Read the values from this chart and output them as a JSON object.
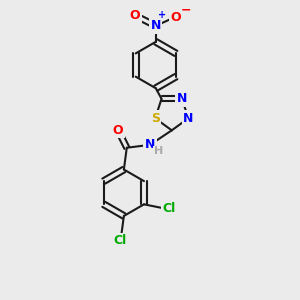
{
  "bg_color": "#ebebeb",
  "bond_color": "#1a1a1a",
  "bond_width": 1.5,
  "atom_colors": {
    "N": "#0000ff",
    "O": "#ff0000",
    "S": "#ccaa00",
    "Cl": "#00aa00",
    "C": "#1a1a1a",
    "H": "#aaaaaa"
  },
  "font_size": 9,
  "fig_size": [
    3.0,
    3.0
  ],
  "dpi": 100
}
